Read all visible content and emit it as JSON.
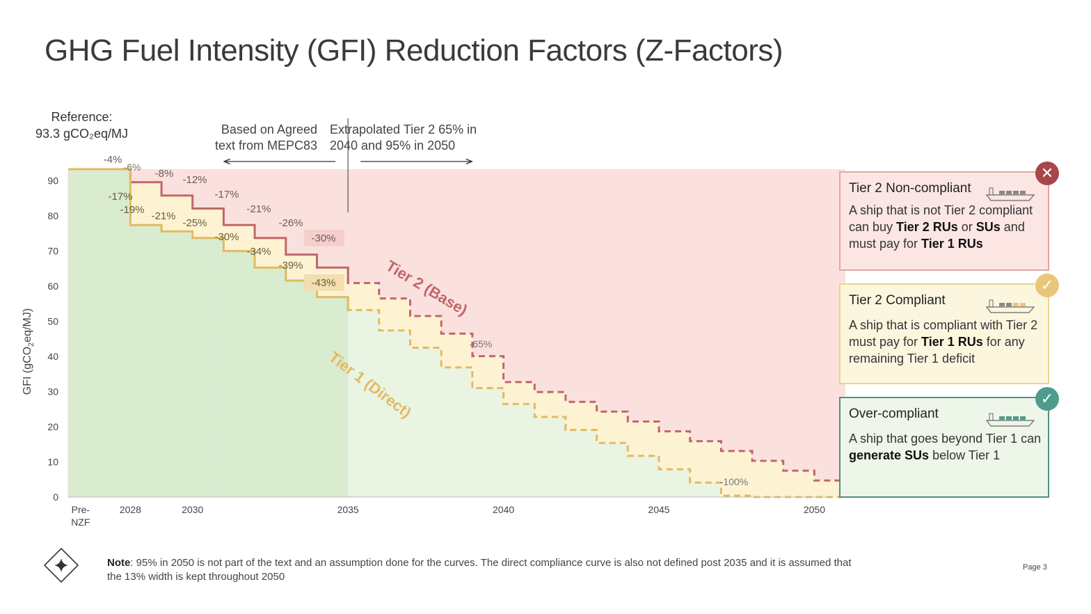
{
  "title": "GHG Fuel Intensity (GFI) Reduction Factors (Z-Factors)",
  "reference": {
    "line1": "Reference:",
    "line2": "93.3 gCO₂eq/MJ"
  },
  "annotations": {
    "left_line1": "Based on Agreed",
    "left_line2": "text from MEPC83",
    "right_line1": "Extrapolated Tier 2 65% in",
    "right_line2": "2040 and 95% in 2050"
  },
  "chart_data": {
    "type": "line",
    "ylabel": "GFI (gCO₂eq/MJ)",
    "ylabel_main": "GFI (gCO",
    "ylabel_sub": "2",
    "ylabel_tail": "eq/MJ)",
    "ylim": [
      0,
      93.3
    ],
    "y_ticks": [
      "0",
      "10",
      "20",
      "30",
      "40",
      "50",
      "60",
      "70",
      "80",
      "90"
    ],
    "x_ticks": [
      "Pre-",
      "2028",
      "2030",
      "2035",
      "2040",
      "2045",
      "2050"
    ],
    "x_tick_pre_line2": "NZF",
    "reference_value": 93.3,
    "x_years": [
      2027,
      2028,
      2029,
      2030,
      2031,
      2032,
      2033,
      2034,
      2035,
      2036,
      2037,
      2038,
      2039,
      2040,
      2041,
      2042,
      2043,
      2044,
      2045,
      2046,
      2047,
      2048,
      2049,
      2050
    ],
    "series": [
      {
        "name": "Tier 2 (Base)",
        "color": "#c0676a",
        "reductions_pct": [
          0,
          4,
          8,
          12,
          17,
          21,
          26,
          30,
          34.7,
          39.4,
          44.8,
          50.2,
          57,
          65,
          68,
          71,
          74,
          77,
          80,
          83,
          86,
          89,
          92,
          95
        ],
        "values": [
          93.3,
          89.6,
          85.8,
          82.1,
          77.4,
          73.7,
          69.0,
          65.3,
          60.9,
          56.5,
          51.5,
          46.5,
          40.1,
          32.7,
          29.9,
          27.1,
          24.3,
          21.5,
          18.7,
          15.9,
          13.1,
          10.3,
          7.5,
          4.7
        ]
      },
      {
        "name": "Tier 1 (Direct)",
        "color": "#e5b95f",
        "reductions_pct": [
          0,
          17,
          19,
          21,
          25,
          30,
          34,
          39,
          43,
          49.2,
          54.5,
          60.5,
          66.8,
          71.6,
          75.6,
          79.5,
          83.5,
          87.5,
          91.5,
          95.6,
          99.6,
          100,
          100,
          100
        ],
        "values": [
          93.3,
          77.4,
          75.6,
          73.7,
          70.0,
          65.3,
          61.6,
          56.9,
          53.2,
          47.4,
          42.5,
          36.9,
          31.0,
          26.5,
          22.8,
          19.1,
          15.4,
          11.7,
          7.9,
          4.1,
          0.4,
          0,
          0,
          0
        ]
      }
    ],
    "tier2_labels": [
      "-4%",
      "-8%",
      "-12%",
      "-17%",
      "-21%",
      "-26%",
      "-30%"
    ],
    "tier1_labels": [
      "-17%",
      "-19%",
      "-21%",
      "-25%",
      "-30%",
      "-34%",
      "-39%",
      "-43%"
    ],
    "extra_labels": [
      "-6%",
      "-65%",
      "-100%"
    ],
    "series_label_tier2": "Tier 2 (Base)",
    "series_label_tier1": "Tier 1 (Direct)",
    "zone_colors": {
      "red": "#fbe1de",
      "yellow": "#fdf3d3",
      "green": "#e9f4e3",
      "green_dark": "#d9ecd0"
    }
  },
  "cards": {
    "non_compliant": {
      "title": "Tier 2 Non-compliant",
      "body_1": "A ship that is not Tier 2 compliant can buy ",
      "body_b1": "Tier 2 RUs",
      "body_2": " or ",
      "body_b2": "SUs",
      "body_3": " and must pay for ",
      "body_b3": "Tier 1 RUs",
      "badge_icon": "x-icon"
    },
    "compliant": {
      "title": "Tier 2 Compliant",
      "body_1": "A ship that is compliant with Tier 2 must pay for ",
      "body_b1": "Tier 1 RUs",
      "body_2": " for any remaining Tier 1 deficit",
      "badge_icon": "check-icon"
    },
    "over_compliant": {
      "title": "Over-compliant",
      "body_1": "A ship that goes beyond Tier 1 can ",
      "body_b1": "generate SUs",
      "body_2": " below Tier 1",
      "badge_icon": "check-icon"
    }
  },
  "footnote": {
    "label": "Note",
    "text": ": 95% in 2050 is not part of the text and an assumption done for the curves. The direct compliance curve is also not defined post 2035 and it is assumed that the 13% width is kept throughout 2050"
  },
  "page_label": "Page 3"
}
